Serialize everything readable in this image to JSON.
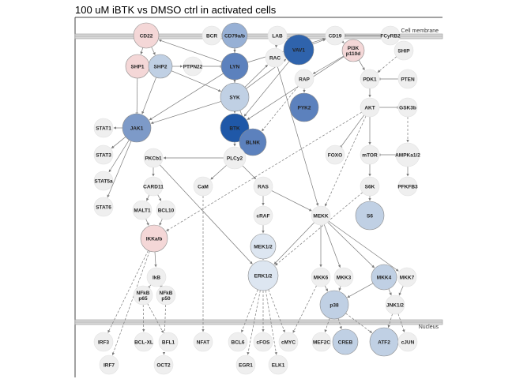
{
  "title": "100 uM iBTK vs DMSO ctrl in activated cells",
  "regions": {
    "membrane_label": "Cell membrane",
    "nucleus_label": "Nucleus"
  },
  "colors": {
    "neutral": "#efefef",
    "light_red": "#f4d7d7",
    "pale_blue": "#dde6f1",
    "light_blue": "#c0d0e4",
    "mid_blue": "#97b0d5",
    "strong_blue": "#7d9ac8",
    "blue": "#5c81bd",
    "dark_blue": "#2f63ac",
    "darkest_blue": "#1f58a8",
    "node_stroke": "#8c8c8c",
    "edge": "#7a7a7a"
  },
  "nodes": [
    {
      "id": "CD22",
      "label": "CD22",
      "color": "light_red"
    },
    {
      "id": "BCR",
      "label": "BCR",
      "color": "neutral"
    },
    {
      "id": "CD79",
      "label": "CD79a/b",
      "color": "mid_blue"
    },
    {
      "id": "LAB",
      "label": "LAB",
      "color": "neutral"
    },
    {
      "id": "VAV1",
      "label": "VAV1",
      "color": "dark_blue"
    },
    {
      "id": "CD19",
      "label": "CD19",
      "color": "neutral"
    },
    {
      "id": "FCYRB2",
      "label": "FCyRB2",
      "color": "neutral"
    },
    {
      "id": "SHP1",
      "label": "SHP1",
      "color": "light_red"
    },
    {
      "id": "SHP2",
      "label": "SHP2",
      "color": "light_blue"
    },
    {
      "id": "PTPN22",
      "label": "PTPN22",
      "color": "neutral"
    },
    {
      "id": "LYN",
      "label": "LYN",
      "color": "blue"
    },
    {
      "id": "RAC",
      "label": "RAC",
      "color": "neutral"
    },
    {
      "id": "PI3K",
      "label": "PI3K p110d",
      "color": "light_red"
    },
    {
      "id": "SHIP",
      "label": "SHIP",
      "color": "neutral"
    },
    {
      "id": "RAP",
      "label": "RAP",
      "color": "neutral"
    },
    {
      "id": "PDK1",
      "label": "PDK1",
      "color": "neutral"
    },
    {
      "id": "PTEN",
      "label": "PTEN",
      "color": "neutral"
    },
    {
      "id": "SYK",
      "label": "SYK",
      "color": "light_blue"
    },
    {
      "id": "PYK2",
      "label": "PYK2",
      "color": "blue"
    },
    {
      "id": "AKT",
      "label": "AKT",
      "color": "neutral"
    },
    {
      "id": "GSK3b",
      "label": "GSK3b",
      "color": "neutral"
    },
    {
      "id": "STAT1",
      "label": "STAT1",
      "color": "neutral"
    },
    {
      "id": "JAK1",
      "label": "JAK1",
      "color": "strong_blue"
    },
    {
      "id": "BTK",
      "label": "BTK",
      "color": "darkest_blue"
    },
    {
      "id": "BLNK",
      "label": "BLNK",
      "color": "blue"
    },
    {
      "id": "STAT3",
      "label": "STAT3",
      "color": "neutral"
    },
    {
      "id": "PKCb1",
      "label": "PKCb1",
      "color": "neutral"
    },
    {
      "id": "PLCy2",
      "label": "PLCy2",
      "color": "neutral"
    },
    {
      "id": "FOXO",
      "label": "FOXO",
      "color": "neutral"
    },
    {
      "id": "mTOR",
      "label": "mTOR",
      "color": "neutral"
    },
    {
      "id": "AMPK",
      "label": "AMPKa1/2",
      "color": "neutral"
    },
    {
      "id": "STAT5a",
      "label": "STAT5a",
      "color": "neutral"
    },
    {
      "id": "CARD11",
      "label": "CARD11",
      "color": "neutral"
    },
    {
      "id": "CaM",
      "label": "CaM",
      "color": "neutral"
    },
    {
      "id": "RAS",
      "label": "RAS",
      "color": "neutral"
    },
    {
      "id": "S6K",
      "label": "S6K",
      "color": "neutral"
    },
    {
      "id": "PFKFB3",
      "label": "PFKFB3",
      "color": "neutral"
    },
    {
      "id": "STAT6",
      "label": "STAT6",
      "color": "neutral"
    },
    {
      "id": "MALT1",
      "label": "MALT1",
      "color": "neutral"
    },
    {
      "id": "BCL10",
      "label": "BCL10",
      "color": "neutral"
    },
    {
      "id": "cRAF",
      "label": "cRAF",
      "color": "neutral"
    },
    {
      "id": "MEKK",
      "label": "MEKK",
      "color": "neutral"
    },
    {
      "id": "S6",
      "label": "S6",
      "color": "light_blue"
    },
    {
      "id": "IKKab",
      "label": "IKKa/b",
      "color": "light_red"
    },
    {
      "id": "MEK12",
      "label": "MEK1/2",
      "color": "pale_blue"
    },
    {
      "id": "ERK12",
      "label": "ERK1/2",
      "color": "pale_blue"
    },
    {
      "id": "MKK6",
      "label": "MKK6",
      "color": "neutral"
    },
    {
      "id": "MKK3",
      "label": "MKK3",
      "color": "neutral"
    },
    {
      "id": "MKK4",
      "label": "MKK4",
      "color": "light_blue"
    },
    {
      "id": "MKK7",
      "label": "MKK7",
      "color": "neutral"
    },
    {
      "id": "IkB",
      "label": "IkB",
      "color": "neutral"
    },
    {
      "id": "NFkBp65",
      "label": "NFkB p65",
      "color": "neutral"
    },
    {
      "id": "NFkBp50",
      "label": "NFkB p50",
      "color": "neutral"
    },
    {
      "id": "p38",
      "label": "p38",
      "color": "light_blue"
    },
    {
      "id": "JNK12",
      "label": "JNK1/2",
      "color": "neutral"
    },
    {
      "id": "IRF3",
      "label": "IRF3",
      "color": "neutral"
    },
    {
      "id": "BCLXL",
      "label": "BCL-XL",
      "color": "neutral"
    },
    {
      "id": "BFL1",
      "label": "BFL1",
      "color": "neutral"
    },
    {
      "id": "NFAT",
      "label": "NFAT",
      "color": "neutral"
    },
    {
      "id": "BCL6",
      "label": "BCL6",
      "color": "neutral"
    },
    {
      "id": "cFOS",
      "label": "cFOS",
      "color": "neutral"
    },
    {
      "id": "cMYC",
      "label": "cMYC",
      "color": "neutral"
    },
    {
      "id": "MEF2C",
      "label": "MEF2C",
      "color": "neutral"
    },
    {
      "id": "CREB",
      "label": "CREB",
      "color": "light_blue"
    },
    {
      "id": "ATF2",
      "label": "ATF2",
      "color": "light_blue"
    },
    {
      "id": "cJUN",
      "label": "cJUN",
      "color": "neutral"
    },
    {
      "id": "IRF7",
      "label": "IRF7",
      "color": "neutral"
    },
    {
      "id": "OCT2",
      "label": "OCT2",
      "color": "neutral"
    },
    {
      "id": "EGR1",
      "label": "EGR1",
      "color": "neutral"
    },
    {
      "id": "ELK1",
      "label": "ELK1",
      "color": "neutral"
    }
  ],
  "edges": [
    {
      "from": "CD22",
      "to": "SHP1",
      "style": "solid"
    },
    {
      "from": "CD22",
      "to": "SHP2",
      "style": "solid"
    },
    {
      "from": "SHP1",
      "to": "JAK1",
      "style": "inhibit"
    },
    {
      "from": "SHP2",
      "to": "PTPN22",
      "style": "solid"
    },
    {
      "from": "SHP2",
      "to": "SYK",
      "style": "solid"
    },
    {
      "from": "SHP2",
      "to": "JAK1",
      "style": "solid"
    },
    {
      "from": "PTPN22",
      "to": "LYN",
      "style": "inhibit"
    },
    {
      "from": "CD79",
      "to": "LYN",
      "style": "solid"
    },
    {
      "from": "CD79",
      "to": "SYK",
      "style": "solid"
    },
    {
      "from": "LYN",
      "to": "SYK",
      "style": "solid"
    },
    {
      "from": "LYN",
      "to": "CD22",
      "style": "solid"
    },
    {
      "from": "LYN",
      "to": "CD19",
      "style": "solid"
    },
    {
      "from": "LYN",
      "to": "JAK1",
      "style": "solid"
    },
    {
      "from": "LYN",
      "to": "BTK",
      "style": "solid"
    },
    {
      "from": "SYK",
      "to": "BTK",
      "style": "solid"
    },
    {
      "from": "SYK",
      "to": "BLNK",
      "style": "solid"
    },
    {
      "from": "SYK",
      "to": "RAC",
      "style": "solid"
    },
    {
      "from": "SYK",
      "to": "VAV1",
      "style": "solid"
    },
    {
      "from": "SYK",
      "to": "JAK1",
      "style": "solid"
    },
    {
      "from": "LAB",
      "to": "RAC",
      "style": "solid"
    },
    {
      "from": "VAV1",
      "to": "RAC",
      "style": "solid"
    },
    {
      "from": "VAV1",
      "to": "BTK",
      "style": "solid"
    },
    {
      "from": "VAV1",
      "to": "CD19",
      "style": "solid"
    },
    {
      "from": "CD19",
      "to": "PI3K",
      "style": "solid"
    },
    {
      "from": "FCYRB2",
      "to": "CD19",
      "style": "inhibit"
    },
    {
      "from": "SHIP",
      "to": "PDK1",
      "style": "dashed"
    },
    {
      "from": "PI3K",
      "to": "PDK1",
      "style": "solid"
    },
    {
      "from": "PI3K",
      "to": "RAP",
      "style": "solid"
    },
    {
      "from": "PI3K",
      "to": "BTK",
      "style": "solid"
    },
    {
      "from": "PTEN",
      "to": "PDK1",
      "style": "inhibit"
    },
    {
      "from": "PDK1",
      "to": "AKT",
      "style": "solid"
    },
    {
      "from": "RAP",
      "to": "PYK2",
      "style": "solid"
    },
    {
      "from": "RAP",
      "to": "BLNK",
      "style": "dashed"
    },
    {
      "from": "RAC",
      "to": "MEKK",
      "style": "solid"
    },
    {
      "from": "AKT",
      "to": "GSK3b",
      "style": "inhibit"
    },
    {
      "from": "AKT",
      "to": "FOXO",
      "style": "inhibit"
    },
    {
      "from": "AKT",
      "to": "mTOR",
      "style": "solid"
    },
    {
      "from": "AKT",
      "to": "IKKab",
      "style": "dashed"
    },
    {
      "from": "AKT",
      "to": "MEKK",
      "style": "dashed"
    },
    {
      "from": "AMPK",
      "to": "mTOR",
      "style": "inhibit"
    },
    {
      "from": "AMPK",
      "to": "PFKFB3",
      "style": "solid"
    },
    {
      "from": "GSK3b",
      "to": "AMPK",
      "style": "dashed"
    },
    {
      "from": "mTOR",
      "to": "S6K",
      "style": "solid"
    },
    {
      "from": "S6K",
      "to": "S6",
      "style": "solid"
    },
    {
      "from": "JAK1",
      "to": "STAT1",
      "style": "solid"
    },
    {
      "from": "JAK1",
      "to": "STAT3",
      "style": "solid"
    },
    {
      "from": "JAK1",
      "to": "STAT5a",
      "style": "solid"
    },
    {
      "from": "JAK1",
      "to": "STAT6",
      "style": "solid"
    },
    {
      "from": "BTK",
      "to": "PLCy2",
      "style": "solid"
    },
    {
      "from": "BLNK",
      "to": "PLCy2",
      "style": "solid"
    },
    {
      "from": "PLCy2",
      "to": "PKCb1",
      "style": "solid"
    },
    {
      "from": "PLCy2",
      "to": "CaM",
      "style": "solid"
    },
    {
      "from": "PLCy2",
      "to": "RAS",
      "style": "solid"
    },
    {
      "from": "PKCb1",
      "to": "CARD11",
      "style": "solid"
    },
    {
      "from": "CARD11",
      "to": "MALT1",
      "style": "solid"
    },
    {
      "from": "CARD11",
      "to": "BCL10",
      "style": "solid"
    },
    {
      "from": "MALT1",
      "to": "IKKab",
      "style": "solid"
    },
    {
      "from": "BCL10",
      "to": "IKKab",
      "style": "solid"
    },
    {
      "from": "RAS",
      "to": "cRAF",
      "style": "solid"
    },
    {
      "from": "RAS",
      "to": "MEKK",
      "style": "solid"
    },
    {
      "from": "cRAF",
      "to": "MEK12",
      "style": "solid"
    },
    {
      "from": "MEK12",
      "to": "ERK12",
      "style": "solid"
    },
    {
      "from": "PKCb1",
      "to": "ERK12",
      "style": "solid"
    },
    {
      "from": "S6K",
      "to": "ERK12",
      "style": "dashed"
    },
    {
      "from": "MEKK",
      "to": "MKK6",
      "style": "solid"
    },
    {
      "from": "MEKK",
      "to": "MKK3",
      "style": "solid"
    },
    {
      "from": "MEKK",
      "to": "MKK4",
      "style": "solid"
    },
    {
      "from": "MEKK",
      "to": "MKK7",
      "style": "solid"
    },
    {
      "from": "MEKK",
      "to": "ERK12",
      "style": "solid"
    },
    {
      "from": "MKK6",
      "to": "p38",
      "style": "solid"
    },
    {
      "from": "MKK3",
      "to": "p38",
      "style": "solid"
    },
    {
      "from": "MKK4",
      "to": "JNK12",
      "style": "solid"
    },
    {
      "from": "MKK7",
      "to": "JNK12",
      "style": "solid"
    },
    {
      "from": "MKK4",
      "to": "p38",
      "style": "solid"
    },
    {
      "from": "IKKab",
      "to": "IkB",
      "style": "solid"
    },
    {
      "from": "IkB",
      "to": "NFkBp65",
      "style": "inhibit"
    },
    {
      "from": "IkB",
      "to": "NFkBp50",
      "style": "inhibit"
    },
    {
      "from": "IKKab",
      "to": "IRF3",
      "style": "dashed"
    },
    {
      "from": "IKKab",
      "to": "IRF7",
      "style": "dashed"
    },
    {
      "from": "NFkBp65",
      "to": "BCLXL",
      "style": "dashed"
    },
    {
      "from": "NFkBp65",
      "to": "BFL1",
      "style": "dashed"
    },
    {
      "from": "NFkBp50",
      "to": "OCT2",
      "style": "dashed"
    },
    {
      "from": "CaM",
      "to": "NFAT",
      "style": "dashed"
    },
    {
      "from": "ERK12",
      "to": "BCL6",
      "style": "dashed"
    },
    {
      "from": "ERK12",
      "to": "EGR1",
      "style": "dashed"
    },
    {
      "from": "ERK12",
      "to": "cFOS",
      "style": "dashed"
    },
    {
      "from": "ERK12",
      "to": "ELK1",
      "style": "dashed"
    },
    {
      "from": "ERK12",
      "to": "cMYC",
      "style": "dashed"
    },
    {
      "from": "p38",
      "to": "MEF2C",
      "style": "dashed"
    },
    {
      "from": "p38",
      "to": "CREB",
      "style": "dashed"
    },
    {
      "from": "p38",
      "to": "ATF2",
      "style": "dashed"
    },
    {
      "from": "JNK12",
      "to": "ATF2",
      "style": "dashed"
    },
    {
      "from": "JNK12",
      "to": "cJUN",
      "style": "dashed"
    },
    {
      "from": "MKK6",
      "to": "cMYC",
      "style": "dashed"
    }
  ]
}
